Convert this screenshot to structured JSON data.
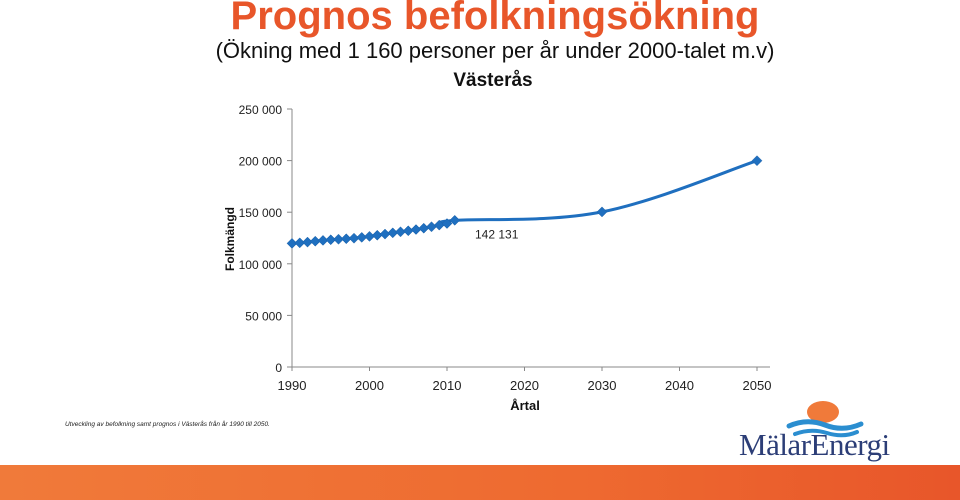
{
  "slide": {
    "title": "Prognos befolkningsökning",
    "subtitle": "(Ökning med 1 160 personer per år under 2000-talet  m.v)",
    "footnote": "Utveckling av befolkning samt prognos i Västerås från år 1990 till 2050.",
    "logo_text": "MälarEnergi"
  },
  "colors": {
    "title": "#e8562a",
    "series": "#1f6fbf",
    "bar": "#f07a3a",
    "logo_text": "#2c3e77",
    "logo_sun": "#f07a3a",
    "logo_waves": "#2b8ed0"
  },
  "chart_data": {
    "type": "line",
    "title": "Västerås",
    "xlabel": "Årtal",
    "ylabel": "Folkmängd",
    "xlim": [
      1990,
      2050
    ],
    "ylim": [
      0,
      250000
    ],
    "xticks": [
      1990,
      2000,
      2010,
      2020,
      2030,
      2040,
      2050
    ],
    "yticks": [
      0,
      50000,
      100000,
      150000,
      200000,
      250000
    ],
    "ytick_labels": [
      "0",
      "50 000",
      "100 000",
      "150 000",
      "200 000",
      "250 000"
    ],
    "grid": false,
    "annotation": {
      "text": "142 131",
      "x": 2010,
      "y": 142131
    },
    "series": [
      {
        "x": [
          1990,
          1991,
          1992,
          1993,
          1994,
          1995,
          1996,
          1997,
          1998,
          1999,
          2000,
          2001,
          2002,
          2003,
          2004,
          2005,
          2006,
          2007,
          2008,
          2009,
          2010,
          2011,
          2030,
          2050
        ],
        "y": [
          119800,
          120300,
          121000,
          121900,
          122700,
          123300,
          123800,
          124300,
          124800,
          125600,
          126600,
          127700,
          128800,
          130000,
          131000,
          132000,
          133200,
          134500,
          135900,
          137500,
          139000,
          142131,
          150300,
          199900
        ]
      }
    ]
  }
}
